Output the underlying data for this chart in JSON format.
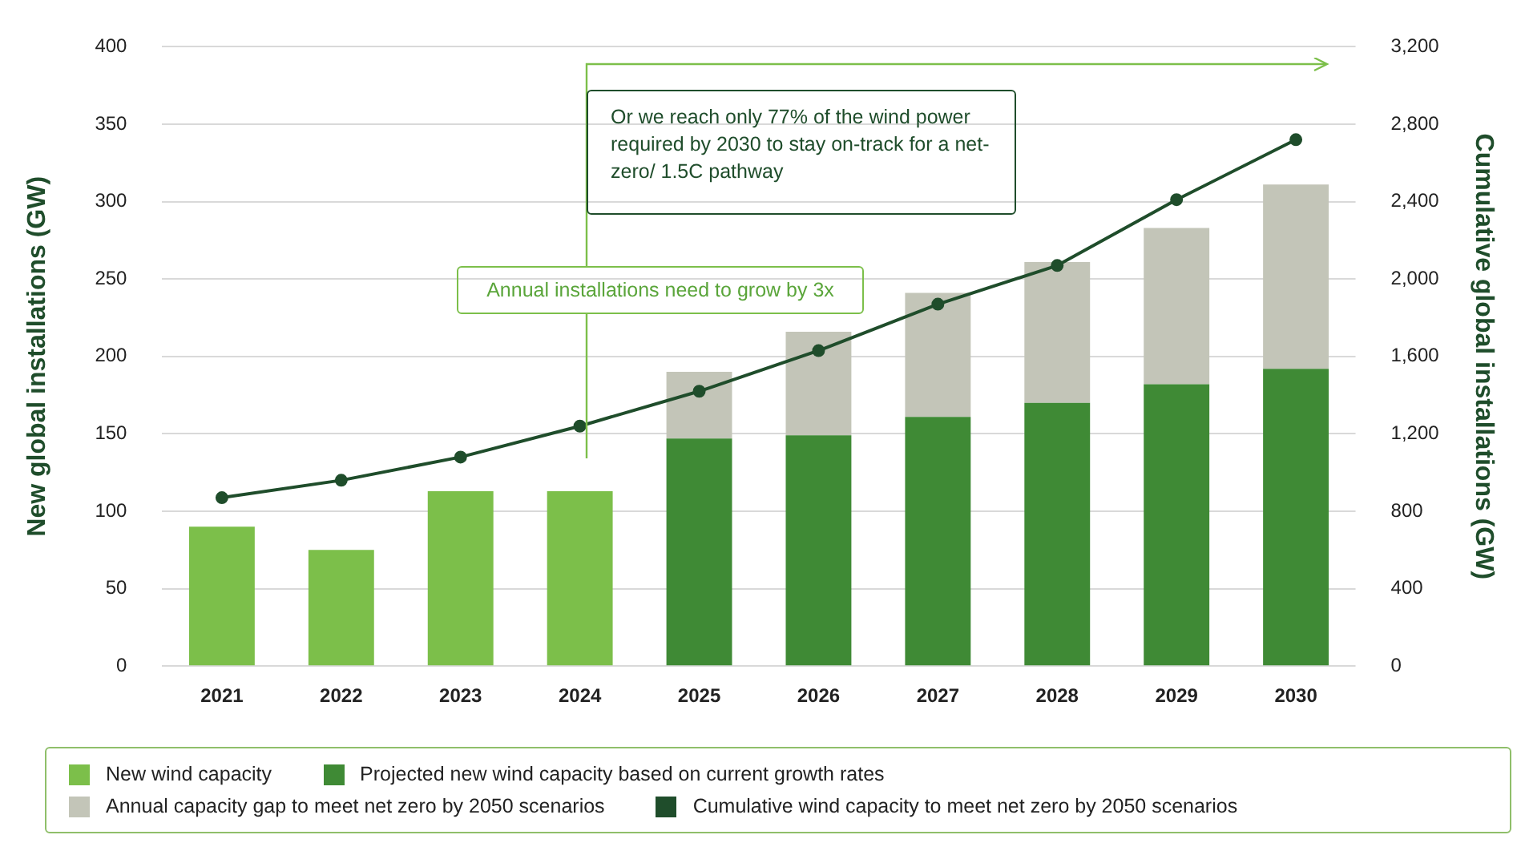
{
  "chart_data": {
    "type": "bar",
    "stacked": true,
    "categories": [
      "2021",
      "2022",
      "2023",
      "2024",
      "2025",
      "2026",
      "2027",
      "2028",
      "2029",
      "2030"
    ],
    "ylabel": "New global installations (GW)",
    "y2label": "Cumulative global installations (GW)",
    "ylim": [
      0,
      400
    ],
    "yticks": [
      0,
      50,
      100,
      150,
      200,
      250,
      300,
      350,
      400
    ],
    "y2lim": [
      0,
      3200
    ],
    "y2ticks": [
      {
        "value": 0,
        "label": "0"
      },
      {
        "value": 400,
        "label": "400"
      },
      {
        "value": 800,
        "label": "800"
      },
      {
        "value": 1200,
        "label": "1,200"
      },
      {
        "value": 1600,
        "label": "1,600"
      },
      {
        "value": 2000,
        "label": "2,000"
      },
      {
        "value": 2400,
        "label": "2,400"
      },
      {
        "value": 2800,
        "label": "2,800"
      },
      {
        "value": 3200,
        "label": "3,200"
      }
    ],
    "grid": "y",
    "legend": "bottom",
    "marker": "circle",
    "series": [
      {
        "name": "New wind capacity",
        "color": "#7cbf4a",
        "values": [
          90,
          75,
          113,
          113,
          null,
          null,
          null,
          null,
          null,
          null
        ]
      },
      {
        "name": "Projected new wind capacity based on current growth rates",
        "color": "#3f8a35",
        "values": [
          null,
          null,
          null,
          null,
          147,
          149,
          161,
          170,
          182,
          192
        ]
      },
      {
        "name": "Annual capacity gap to meet net zero by 2050 scenarios",
        "color": "#c3c5b8",
        "values": [
          null,
          null,
          null,
          null,
          43,
          67,
          80,
          91,
          101,
          119
        ]
      },
      {
        "name": "Cumulative wind capacity to meet net zero by 2050 scenarios",
        "type": "line",
        "axis": "y2",
        "color": "#1f4d2b",
        "values": [
          870,
          960,
          1080,
          1240,
          1420,
          1630,
          1870,
          2070,
          2410,
          2720
        ]
      }
    ],
    "annotations": [
      "Annual installations need to grow by 3x",
      "Or we reach only 77% of the wind power required by 2030 to stay on-track for a net-zero/ 1.5C pathway"
    ]
  }
}
